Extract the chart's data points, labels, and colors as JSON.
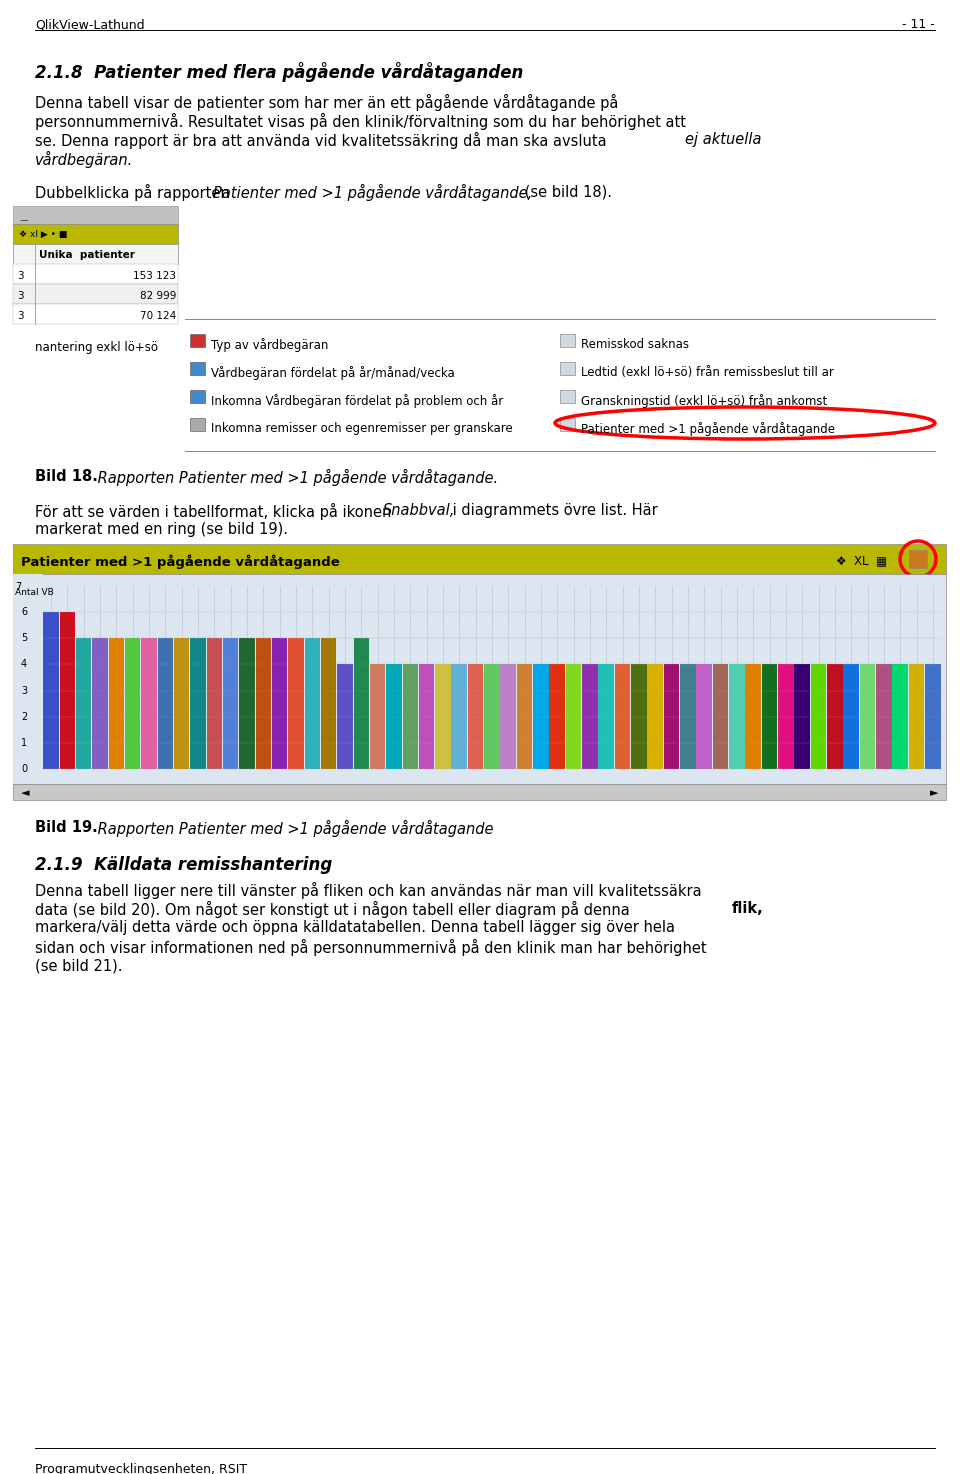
{
  "page_background": "#ffffff",
  "header_left": "QlikView-Lathund",
  "header_right": "- 11 -",
  "footer": "Programutvecklingsenheten, RSIT",
  "section_title": "2.1.8  Patienter med flera pågående vårdåtaganden",
  "section2_title": "2.1.9  Källdata remisshantering",
  "chart_title": "Patienter med >1 pågående vårdåtagande",
  "chart_title_bg": "#b8b800",
  "chart_bg": "#dce6f0",
  "bar_colors": [
    "#3a4fc8",
    "#cc1020",
    "#20a8a0",
    "#8060c0",
    "#e08000",
    "#50c840",
    "#e060a0",
    "#4070b0",
    "#c09010",
    "#108888",
    "#c85050",
    "#5080d8",
    "#206830",
    "#c05010",
    "#8820b0",
    "#e05030",
    "#30b0b8",
    "#a07800",
    "#6050c8",
    "#208850",
    "#d07860",
    "#00a8b8",
    "#60a060",
    "#c050b8",
    "#d0c040",
    "#60b0d8",
    "#e06050",
    "#60c860",
    "#c080c8",
    "#d08030",
    "#00a8e8",
    "#e03010",
    "#80d820",
    "#9030b0",
    "#20c0b8",
    "#e06030",
    "#507010",
    "#d8b000",
    "#a01070",
    "#408090",
    "#c060c8",
    "#a06858",
    "#50d0b0",
    "#e08000",
    "#107020",
    "#e01080",
    "#380070",
    "#60d800",
    "#c01020",
    "#1070e0",
    "#70d870",
    "#b05080",
    "#00d870",
    "#d0b000",
    "#4070c8"
  ],
  "bar_heights": [
    6,
    6,
    5,
    5,
    5,
    5,
    5,
    5,
    5,
    5,
    5,
    5,
    5,
    5,
    5,
    5,
    5,
    5,
    4,
    5,
    4,
    4,
    4,
    4,
    4,
    4,
    4,
    4,
    4,
    4,
    4,
    4,
    4,
    4,
    4,
    4,
    4,
    4,
    4,
    4,
    4,
    4,
    4,
    4,
    4,
    4,
    4,
    4,
    4,
    4,
    4,
    4,
    4,
    4,
    4
  ]
}
